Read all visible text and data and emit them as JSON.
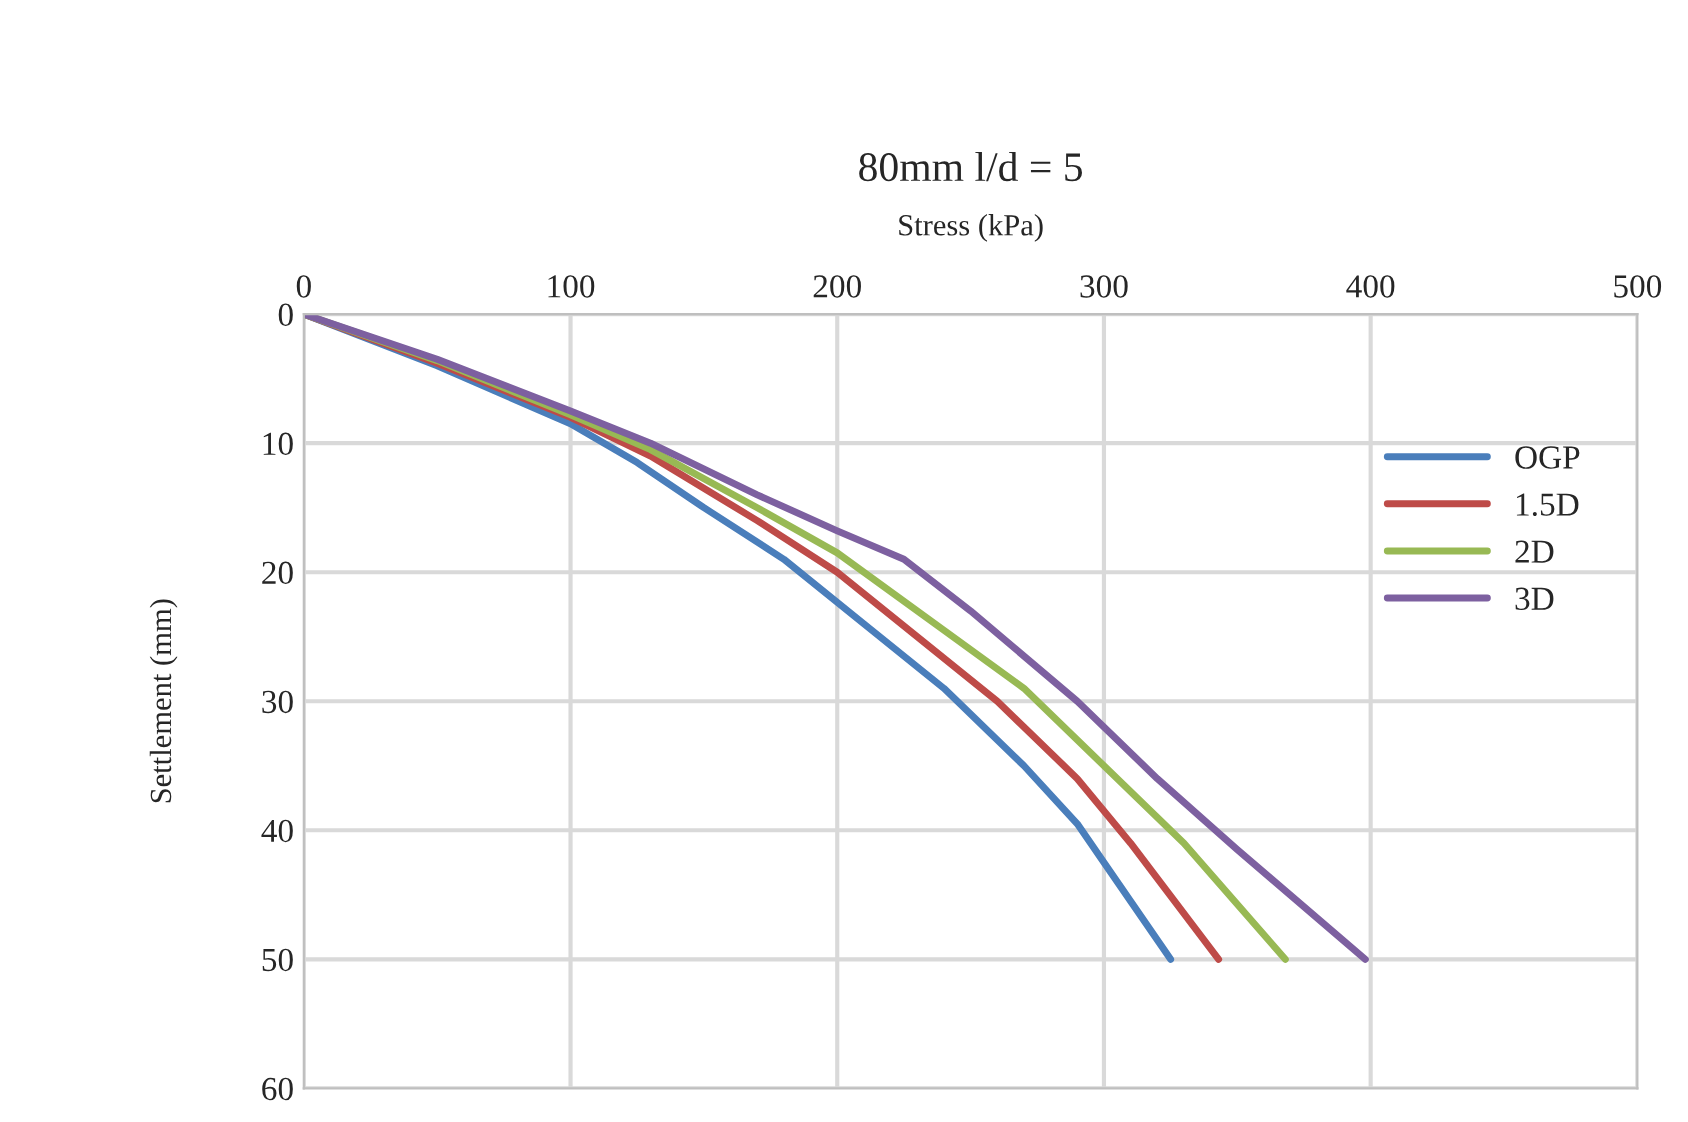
{
  "chart_data": {
    "type": "line",
    "title": "80mm l/d = 5",
    "xlabel": "Stress (kPa)",
    "ylabel": "Settlement (mm)",
    "xlim": [
      0,
      500
    ],
    "xticks": [
      0,
      100,
      200,
      300,
      400,
      500
    ],
    "ylim": [
      60,
      0
    ],
    "yticks": [
      0,
      10,
      20,
      30,
      40,
      50,
      60
    ],
    "grid": true,
    "legend": "right",
    "line_style": "solid",
    "series": [
      {
        "name": "OGP",
        "color": "#4a7ebb",
        "x": [
          0,
          50,
          100,
          125,
          150,
          180,
          210,
          240,
          270,
          290,
          300,
          325
        ],
        "values": [
          0,
          4,
          8.5,
          11.5,
          15,
          19,
          24,
          29,
          35,
          39.5,
          42.5,
          50
        ]
      },
      {
        "name": "1.5D",
        "color": "#be4b48",
        "x": [
          0,
          50,
          100,
          130,
          170,
          200,
          230,
          260,
          290,
          310,
          343
        ],
        "values": [
          0,
          3.8,
          8,
          11,
          16,
          20,
          25,
          30,
          36,
          41,
          50
        ]
      },
      {
        "name": "2D",
        "color": "#98b954",
        "x": [
          0,
          50,
          100,
          130,
          170,
          200,
          240,
          270,
          300,
          330,
          368
        ],
        "values": [
          0,
          3.6,
          7.8,
          10.5,
          15,
          18.5,
          24.5,
          29,
          35,
          41,
          50
        ]
      },
      {
        "name": "3D",
        "color": "#7d60a0",
        "x": [
          0,
          50,
          100,
          130,
          170,
          200,
          225,
          250,
          290,
          320,
          350,
          398
        ],
        "values": [
          0,
          3.5,
          7.5,
          10,
          14,
          16.8,
          19,
          23,
          30,
          36,
          41.5,
          50
        ]
      }
    ]
  }
}
